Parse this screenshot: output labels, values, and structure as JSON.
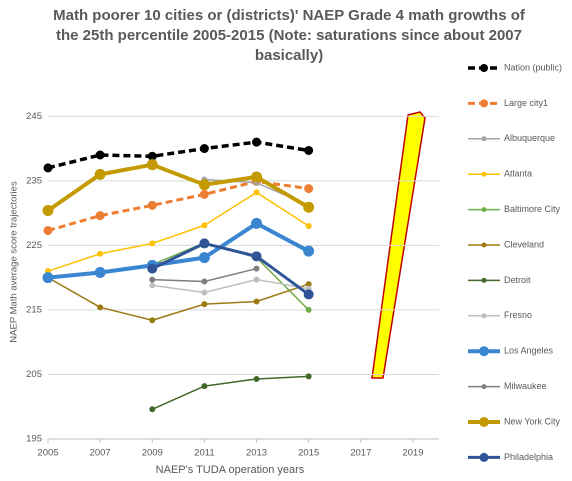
{
  "chart_data": {
    "type": "line",
    "title": "Math poorer 10 cities or (districts)' NAEP Grade 4 math growths of the 25th  percentile 2005-2015 (Note: saturations since about 2007 basically)",
    "x_label": "NAEP's TUDA operation  years",
    "y_label": "NAEP Math average score trajectories",
    "x": [
      2005,
      2007,
      2009,
      2011,
      2013,
      2015
    ],
    "xlim": [
      2005,
      2020
    ],
    "xticks": [
      2005,
      2007,
      2009,
      2011,
      2013,
      2015,
      2017,
      2019
    ],
    "ylim": [
      195,
      250
    ],
    "yticks": [
      195,
      205,
      215,
      225,
      235,
      245
    ],
    "grid": true,
    "legend": "right",
    "series": [
      {
        "name": "Nation (public)",
        "color": "#000000",
        "values": [
          237,
          239,
          238.8,
          240,
          241,
          239.7
        ]
      },
      {
        "name": "Large city1",
        "color": "#ED7D31",
        "values": [
          227.3,
          229.6,
          231.2,
          232.9,
          234.9,
          233.8
        ]
      },
      {
        "name": "Albuquerque",
        "color": "#A5A5A5",
        "values": [
          null,
          null,
          null,
          235.2,
          234.7,
          231.2
        ]
      },
      {
        "name": "Atlanta",
        "color": "#FFC000",
        "values": [
          221,
          223.7,
          225.3,
          228.1,
          233.2,
          228
        ]
      },
      {
        "name": "Baltimore City",
        "color": "#70AD47",
        "values": [
          null,
          null,
          222,
          225.4,
          223.1,
          215
        ]
      },
      {
        "name": "Cleveland",
        "color": "#9C7A13",
        "values": [
          220,
          215.4,
          213.4,
          215.9,
          216.3,
          219
        ]
      },
      {
        "name": "Detroit",
        "color": "#43682B",
        "values": [
          null,
          null,
          199.6,
          203.2,
          204.3,
          204.7
        ]
      },
      {
        "name": "Fresno",
        "color": "#BFBFBF",
        "values": [
          null,
          null,
          218.8,
          217.7,
          219.7,
          218.3
        ]
      },
      {
        "name": "Los Angeles",
        "color": "#3A86D0",
        "values": [
          220,
          220.8,
          221.9,
          223.1,
          228.4,
          224.1
        ]
      },
      {
        "name": "Milwaukee",
        "color": "#7F7F7F",
        "values": [
          null,
          null,
          219.7,
          219.4,
          221.4,
          null
        ]
      },
      {
        "name": "New York City",
        "color": "#C39A00",
        "values": [
          230.4,
          236,
          237.5,
          234.4,
          235.6,
          230.9
        ]
      },
      {
        "name": "Philadelphia",
        "color": "#2F5597",
        "values": [
          null,
          null,
          221.4,
          225.3,
          223.3,
          217.4
        ]
      }
    ]
  }
}
